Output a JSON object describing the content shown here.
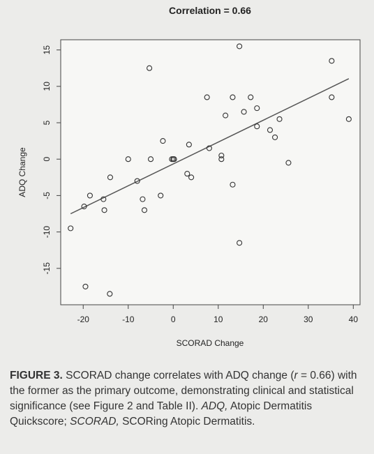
{
  "chart_data": {
    "type": "scatter",
    "title": "Correlation = 0.66",
    "x_label": "SCORAD Change",
    "y_label": "ADQ Change",
    "x": [
      -22.8,
      -19.8,
      -18.5,
      -15.5,
      -15.3,
      -14,
      -19.5,
      -14.1,
      -10,
      -8,
      -6.8,
      -6.4,
      -5.3,
      -5,
      -2.8,
      -2.3,
      -0.3,
      0,
      0.2,
      3.1,
      4,
      3.5,
      7.5,
      8,
      10.7,
      10.7,
      11.6,
      13.2,
      13.2,
      14.7,
      14.7,
      15.7,
      17.2,
      18.6,
      18.6,
      21.5,
      22.6,
      23.6,
      25.6,
      35.2,
      35.2,
      39
    ],
    "y": [
      -9.5,
      -6.5,
      -5,
      -5.5,
      -7,
      -2.5,
      -17.5,
      -18.5,
      0,
      -3,
      -5.5,
      -7,
      12.5,
      0,
      -5,
      2.5,
      0,
      0,
      0,
      -2,
      -2.5,
      2,
      8.5,
      1.5,
      0.5,
      0,
      6,
      8.5,
      -3.5,
      15.5,
      -11.5,
      6.5,
      8.5,
      7,
      4.5,
      4,
      3,
      5.5,
      -0.5,
      13.5,
      8.5,
      5.5
    ],
    "trend": {
      "x": [
        -22.8,
        39
      ],
      "y": [
        -7.5,
        11.05
      ]
    },
    "color": "#333333",
    "line_color": "#555555",
    "xlim": [
      -25,
      41.5
    ],
    "ylim": [
      -20,
      16.4
    ],
    "xticks": [
      -20,
      -10,
      0,
      10,
      20,
      30,
      40
    ],
    "yticks": [
      -15,
      -10,
      -5,
      0,
      5,
      10,
      15
    ]
  },
  "caption": {
    "label": "FIGURE 3.",
    "body_start": "SCORAD change correlates with ADQ change (",
    "symbol": "r",
    "body_end": " = 0.66) with the former as the primary outcome, demonstrating clinical and statistical significance (see Figure 2 and Table II).",
    "abbreviations": [
      {
        "term": "ADQ,",
        "definition": "Atopic Dermatitis Quickscore;"
      },
      {
        "term": "SCORAD,",
        "definition": "SCORing Atopic Dermatitis."
      }
    ]
  }
}
